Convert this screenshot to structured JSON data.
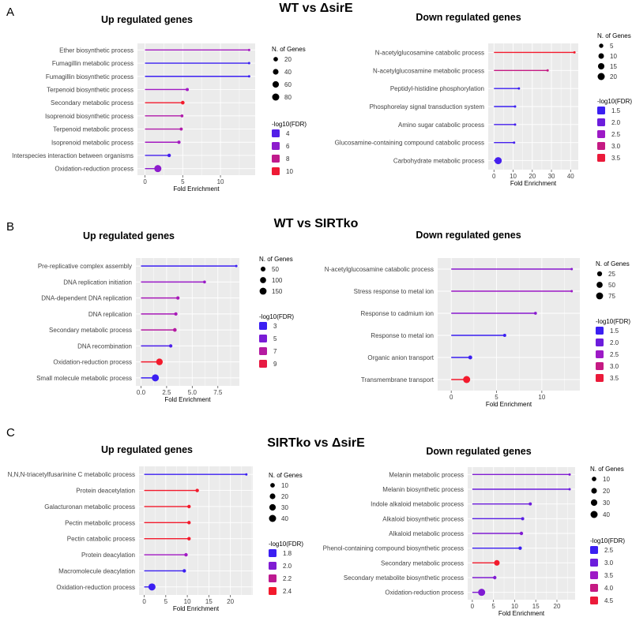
{
  "figure": {
    "sections": [
      {
        "letter": "A",
        "title": "WT vs ΔsirE"
      },
      {
        "letter": "B",
        "title": "WT vs SIRTko"
      },
      {
        "letter": "C",
        "title": "SIRTko vs ΔsirE"
      }
    ],
    "legend_labels": {
      "size": "N. of Genes",
      "color": "-log10(FDR)"
    },
    "palette": {
      "low": "#3b1ff2",
      "mid": "#a21ac4",
      "high": "#f31a2c",
      "panel_bg": "#ebebeb",
      "grid": "#ffffff"
    }
  },
  "chart_data": [
    {
      "type": "lollipop",
      "section": "A",
      "title": "Up regulated genes",
      "xlabel": "Fold Enrichment",
      "xlim": [
        -1,
        14.6
      ],
      "xticks": [
        0,
        5,
        10
      ],
      "categories": [
        "Ether biosynthetic process",
        "Fumagillin metabolic process",
        "Fumagillin biosynthetic process",
        "Terpenoid biosynthetic process",
        "Secondary metabolic process",
        "Isoprenoid biosynthetic process",
        "Terpenoid metabolic process",
        "Isoprenoid metabolic process",
        "Interspecies interaction between organisms",
        "Oxidation-reduction process"
      ],
      "values": [
        13.8,
        13.8,
        13.8,
        5.6,
        5.0,
        4.9,
        4.8,
        4.5,
        3.2,
        1.7
      ],
      "genes": [
        4,
        4,
        4,
        6,
        10,
        5,
        6,
        7,
        8,
        80
      ],
      "neg_log10_fdr": [
        6.8,
        3.2,
        3.2,
        6.7,
        10.2,
        7.3,
        7.3,
        6.8,
        3.5,
        6.0
      ],
      "size_legend": [
        20,
        40,
        60,
        80
      ],
      "gene_range": [
        4,
        80
      ],
      "color_legend": [
        4,
        6,
        8,
        10
      ],
      "color_range": [
        3.2,
        10.2
      ]
    },
    {
      "type": "lollipop",
      "section": "A",
      "title": "Down regulated genes",
      "xlabel": "Fold Enrichment",
      "xlim": [
        -3,
        44
      ],
      "xticks": [
        0,
        10,
        20,
        30,
        40
      ],
      "categories": [
        "N-acetylglucosamine catabolic process",
        "N-acetylglucosamine metabolic process",
        "Peptidyl-histidine phosphorylation",
        "Phosphorelay signal transduction system",
        "Amino sugar catabolic process",
        "Glucosamine-containing compound catabolic process",
        "Carbohydrate metabolic process"
      ],
      "values": [
        42,
        28,
        13,
        11,
        11,
        10.5,
        2.2
      ],
      "genes": [
        2,
        2,
        2,
        2,
        2,
        2,
        20
      ],
      "neg_log10_fdr": [
        3.6,
        3.0,
        1.5,
        1.5,
        1.6,
        1.6,
        1.6
      ],
      "size_legend": [
        5,
        10,
        15,
        20
      ],
      "gene_range": [
        2,
        20
      ],
      "color_legend": [
        1.5,
        2.0,
        2.5,
        3.0,
        3.5
      ],
      "color_range": [
        1.5,
        3.6
      ]
    },
    {
      "type": "lollipop",
      "section": "B",
      "title": "Up regulated genes",
      "xlabel": "Fold Enrichment",
      "xlim": [
        -0.5,
        9.6
      ],
      "xticks": [
        0.0,
        2.5,
        5.0,
        7.5
      ],
      "categories": [
        "Pre-replicative complex assembly",
        "DNA replication initiation",
        "DNA-dependent DNA replication",
        "DNA replication",
        "Secondary metabolic process",
        "DNA recombination",
        "Oxidation-reduction process",
        "Small molecule metabolic process"
      ],
      "values": [
        9.3,
        6.2,
        3.6,
        3.4,
        3.3,
        2.9,
        1.8,
        1.4
      ],
      "genes": [
        8,
        10,
        15,
        15,
        20,
        15,
        130,
        160
      ],
      "neg_log10_fdr": [
        3.0,
        6.0,
        6.5,
        6.5,
        7.0,
        3.5,
        9.5,
        3.0
      ],
      "size_legend": [
        50,
        100,
        150
      ],
      "gene_range": [
        8,
        160
      ],
      "color_legend": [
        3,
        5,
        7,
        9
      ],
      "color_range": [
        3.0,
        9.5
      ]
    },
    {
      "type": "lollipop",
      "section": "B",
      "title": "Down regulated genes",
      "xlabel": "Fold Enrichment",
      "xlim": [
        -1.5,
        14.2
      ],
      "xticks": [
        0,
        5,
        10
      ],
      "categories": [
        "N-acetylglucosamine catabolic process",
        "Stress response to metal ion",
        "Response to cadmium ion",
        "Response to metal ion",
        "Organic anion transport",
        "Transmembrane transport"
      ],
      "values": [
        13.3,
        13.3,
        9.3,
        5.9,
        2.1,
        1.7
      ],
      "genes": [
        2,
        2,
        3,
        4,
        10,
        80
      ],
      "neg_log10_fdr": [
        2.3,
        2.5,
        2.3,
        1.5,
        1.5,
        3.6
      ],
      "size_legend": [
        25,
        50,
        75
      ],
      "gene_range": [
        2,
        80
      ],
      "color_legend": [
        1.5,
        2.0,
        2.5,
        3.0,
        3.5
      ],
      "color_range": [
        1.5,
        3.6
      ]
    },
    {
      "type": "lollipop",
      "section": "C",
      "title": "Up regulated genes",
      "xlabel": "Fold Enrichment",
      "xlim": [
        -1.2,
        25.2
      ],
      "xticks": [
        0,
        5,
        10,
        15,
        20
      ],
      "categories": [
        "N,N,N-triacetylfusarinine C metabolic process",
        "Protein deacetylation",
        "Galacturonan metabolic process",
        "Pectin metabolic process",
        "Pectin catabolic process",
        "Protein deacylation",
        "Macromolecule deacylation",
        "Oxidation-reduction process"
      ],
      "values": [
        23.7,
        12.3,
        10.4,
        10.4,
        10.4,
        9.7,
        9.3,
        1.8
      ],
      "genes": [
        2,
        4,
        4,
        4,
        4,
        4,
        4,
        40
      ],
      "neg_log10_fdr": [
        1.8,
        2.4,
        2.4,
        2.4,
        2.4,
        2.1,
        1.8,
        1.8
      ],
      "size_legend": [
        10,
        20,
        30,
        40
      ],
      "gene_range": [
        2,
        40
      ],
      "color_legend": [
        1.8,
        2.0,
        2.2,
        2.4
      ],
      "color_range": [
        1.8,
        2.4
      ]
    },
    {
      "type": "lollipop",
      "section": "C",
      "title": "Down regulated genes",
      "xlabel": "Fold Enrichment",
      "xlim": [
        -1.1,
        24.3
      ],
      "xticks": [
        0,
        5,
        10,
        15,
        20
      ],
      "categories": [
        "Melanin metabolic process",
        "Melanin biosynthetic process",
        "Indole alkaloid metabolic process",
        "Alkaloid biosynthetic process",
        "Alkaloid metabolic process",
        "Phenol-containing compound biosynthetic process",
        "Secondary metabolic process",
        "Secondary metabolite biosynthetic process",
        "Oxidation-reduction process"
      ],
      "values": [
        23.0,
        23.0,
        13.7,
        11.9,
        11.6,
        11.3,
        5.8,
        5.3,
        2.2
      ],
      "genes": [
        2,
        2,
        3,
        3,
        4,
        4,
        20,
        4,
        40
      ],
      "neg_log10_fdr": [
        3.2,
        3.0,
        3.0,
        2.8,
        3.2,
        2.5,
        4.6,
        3.2,
        3.2
      ],
      "size_legend": [
        10,
        20,
        30,
        40
      ],
      "gene_range": [
        2,
        40
      ],
      "color_legend": [
        2.5,
        3.0,
        3.5,
        4.0,
        4.5
      ],
      "color_range": [
        2.5,
        4.6
      ]
    }
  ]
}
